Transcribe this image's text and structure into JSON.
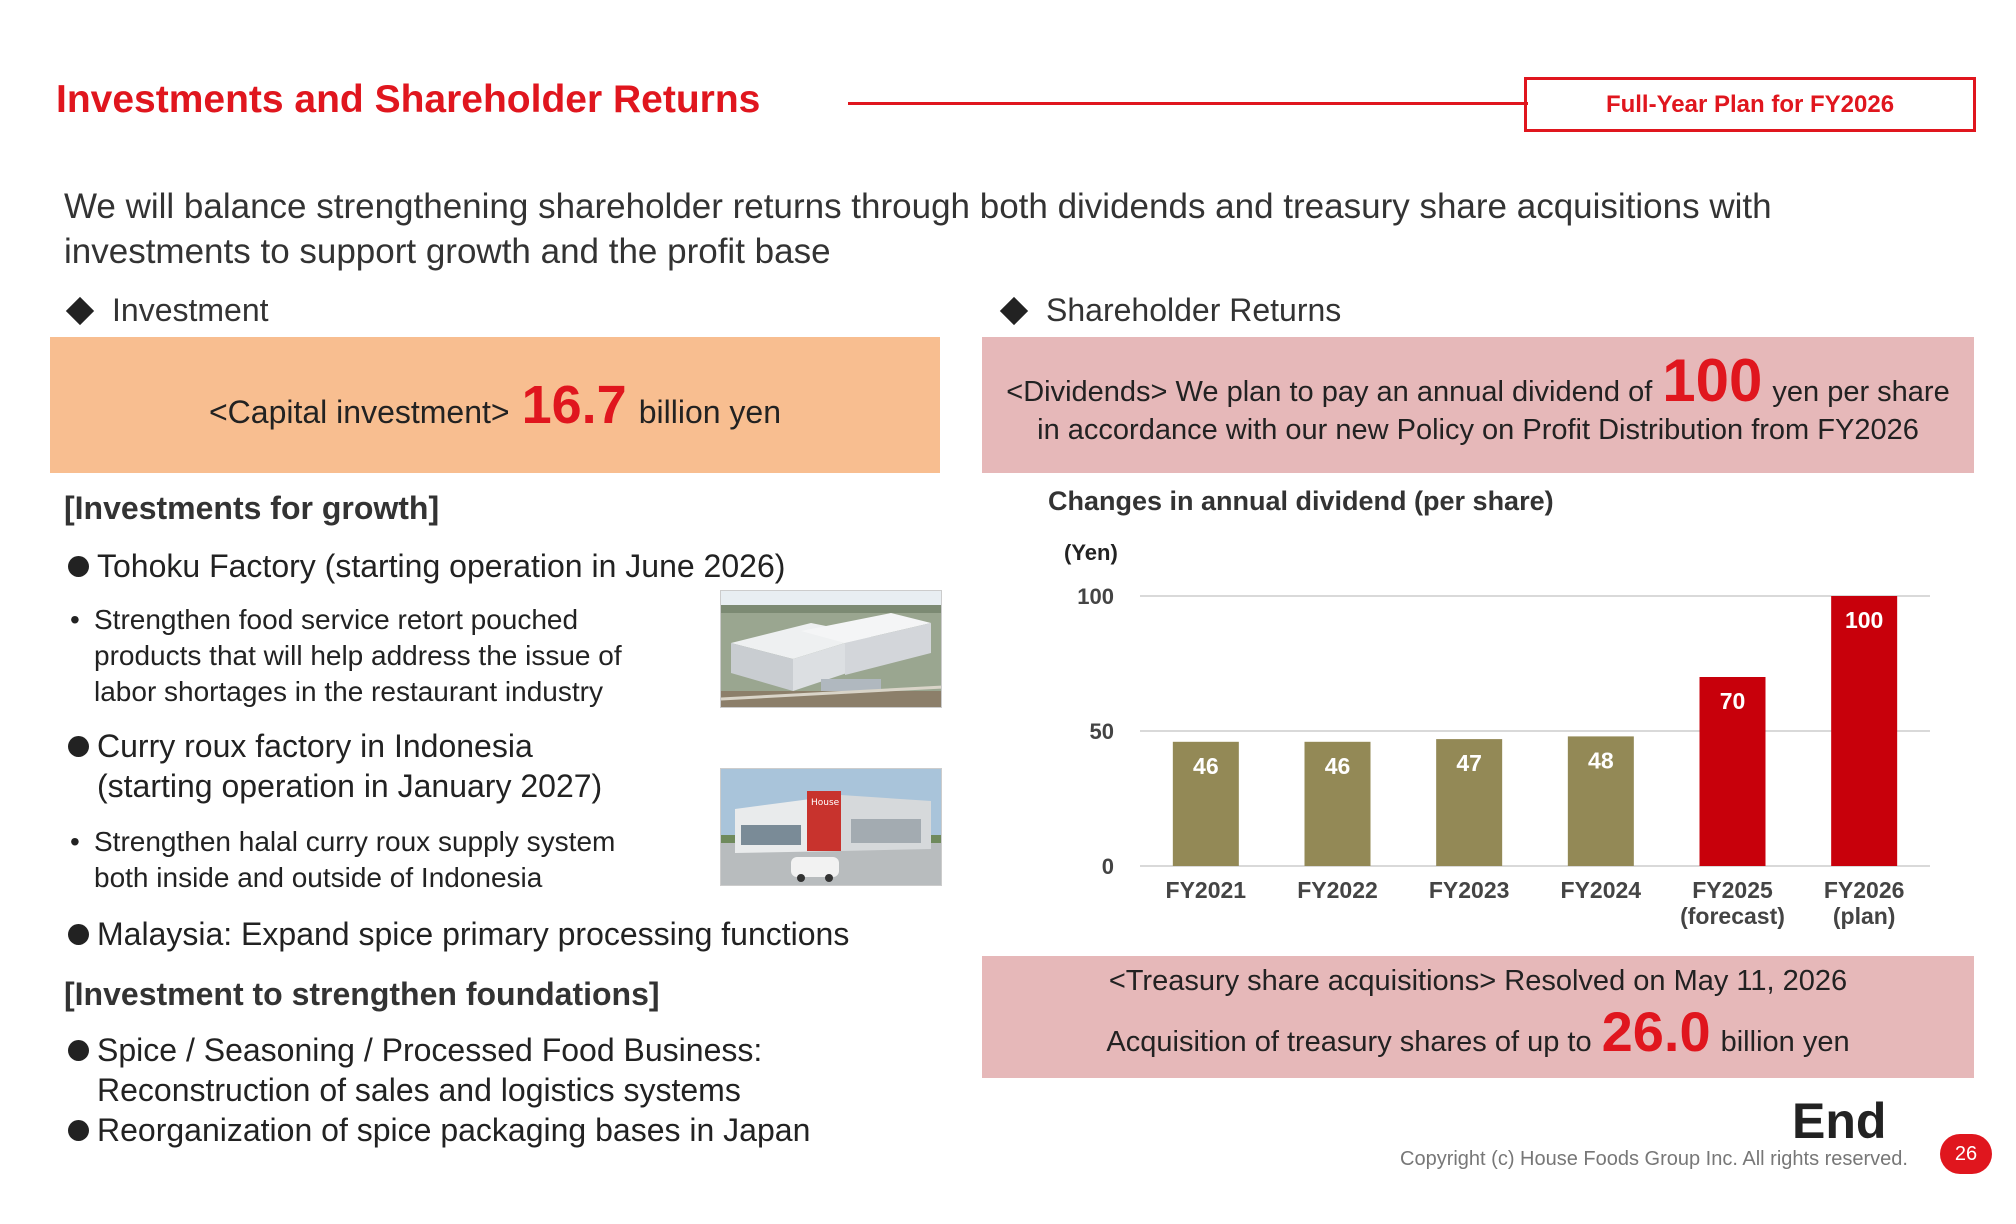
{
  "header": {
    "title": "Investments and Shareholder Returns",
    "badge": "Full-Year Plan for FY2026"
  },
  "lead": "We will balance strengthening shareholder returns through both dividends and treasury share acquisitions with investments to support growth and the profit base",
  "investment": {
    "heading": "Investment",
    "capital_label": "<Capital investment>",
    "capital_value": "16.7",
    "capital_unit": "billion yen",
    "growth_heading": "[Investments for growth]",
    "tohoku": "Tohoku Factory (starting operation in June 2026)",
    "tohoku_detail": [
      "Strengthen food service retort pouched",
      "products that will help address the issue of",
      "labor shortages in the restaurant industry"
    ],
    "indonesia": [
      "Curry roux factory in Indonesia",
      "(starting operation in January 2027)"
    ],
    "indonesia_detail": [
      "Strengthen halal curry roux supply system",
      "both inside and outside of Indonesia"
    ],
    "malaysia": "Malaysia: Expand spice primary processing functions",
    "foundation_heading": "[Investment to strengthen foundations]",
    "foundation_items": [
      [
        "Spice / Seasoning / Processed Food Business:",
        "Reconstruction of sales and logistics systems"
      ],
      [
        "Reorganization of spice packaging bases in Japan"
      ]
    ],
    "indonesia_sign": "House"
  },
  "returns": {
    "heading": "Shareholder Returns",
    "dividend_pre": "<Dividends> We plan to pay an annual dividend of",
    "dividend_value": "100",
    "dividend_post": "yen per share",
    "dividend_line2": "in accordance with our new Policy on Profit Distribution from FY2026",
    "treasury_line1": "<Treasury share acquisitions> Resolved on May 11, 2026",
    "treasury_pre": "Acquisition of treasury shares of up to",
    "treasury_value": "26.0",
    "treasury_post": "billion yen"
  },
  "chart_data": {
    "type": "bar",
    "title": "Changes in annual dividend (per share)",
    "ylabel": "(Yen)",
    "xlabel": "",
    "categories": [
      [
        "FY2021"
      ],
      [
        "FY2022"
      ],
      [
        "FY2023"
      ],
      [
        "FY2024"
      ],
      [
        "FY2025",
        "(forecast)"
      ],
      [
        "FY2026",
        "(plan)"
      ]
    ],
    "values": [
      46,
      46,
      47,
      48,
      70,
      100
    ],
    "bar_colors": [
      "#938956",
      "#938956",
      "#938956",
      "#938956",
      "#c8000b",
      "#c8000b"
    ],
    "ylim": [
      0,
      100
    ],
    "yticks": [
      0,
      50,
      100
    ],
    "grid": true,
    "legend": "none"
  },
  "footer": {
    "end": "End",
    "copyright": "Copyright (c) House Foods Group Inc. All rights reserved.",
    "page": "26"
  },
  "colors": {
    "accent": "#e0161e",
    "invest_box": "#f8be90",
    "returns_box": "#e6b8b9"
  }
}
